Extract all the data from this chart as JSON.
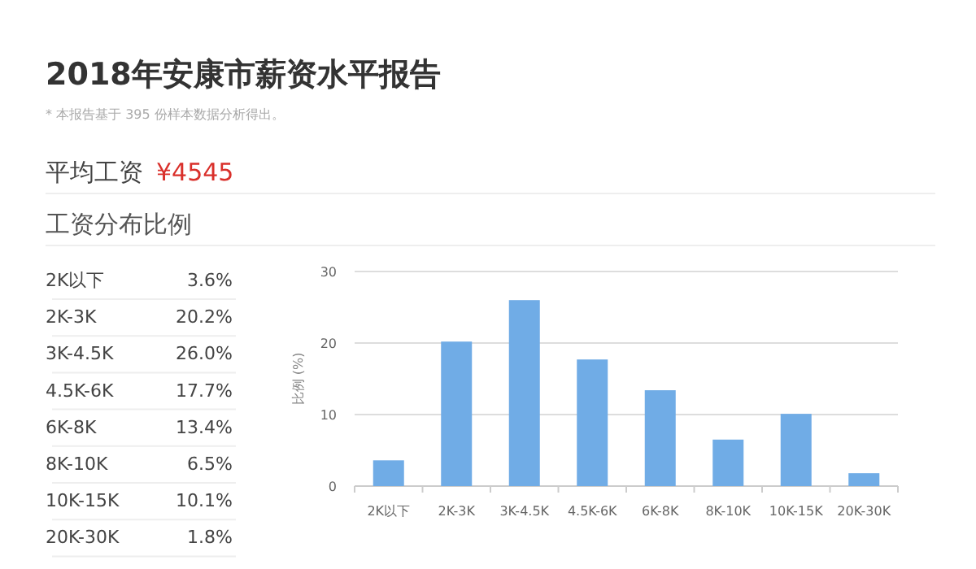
{
  "chart_data": [
    {
      "type": "other",
      "title": "2018年安康市薪资水平报告",
      "subtitle": "* 本报告基于 395 份样本数据分析得出。",
      "annotations": [
        "平均工资",
        "¥4545",
        "工资分布比例"
      ]
    },
    {
      "type": "other",
      "annotations": [
        "2K以下",
        "3.6%",
        "2K-3K",
        "20.2%",
        "3K-4.5K",
        "26.0%",
        "4.5K-6K",
        "17.7%",
        "6K-8K",
        "13.4%",
        "8K-10K",
        "6.5%",
        "10K-15K",
        "10.1%",
        "20K-30K",
        "1.8%"
      ]
    },
    {
      "type": "bar",
      "ylabel": "比例 (%)",
      "categories": [
        "2K以下",
        "2K-3K",
        "3K-4.5K",
        "4.5K-6K",
        "6K-8K",
        "8K-10K",
        "10K-15K",
        "20K-30K"
      ],
      "values": [
        3.6,
        20.2,
        26.0,
        17.7,
        13.4,
        6.5,
        10.1,
        1.8
      ],
      "color": "#70ace6",
      "ylim": [
        0,
        30
      ],
      "yticks": [
        0,
        10,
        20,
        30
      ],
      "grid": "y"
    }
  ]
}
